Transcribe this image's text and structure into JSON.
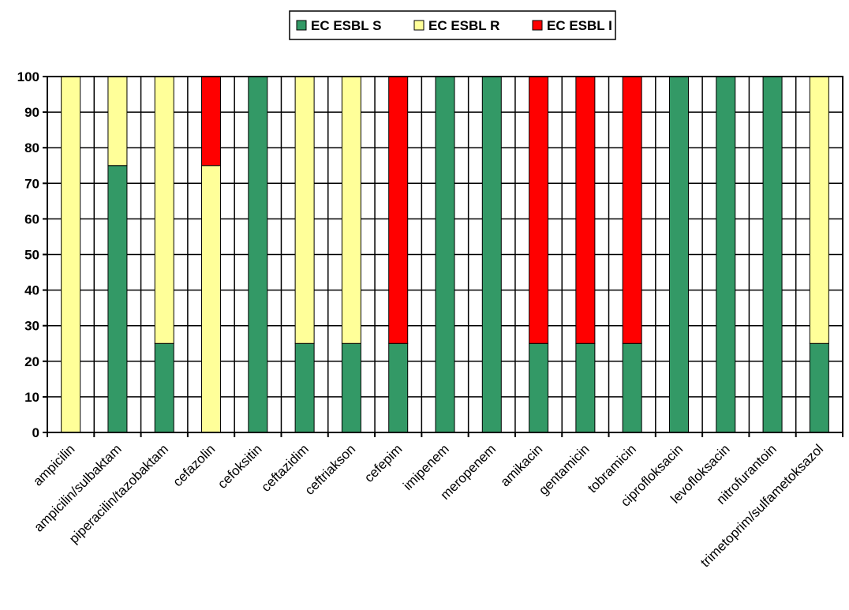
{
  "chart_data": {
    "type": "bar",
    "stacked": true,
    "categories": [
      "ampicilin",
      "ampicilin/sulbaktam",
      "piperacilin/tazobaktam",
      "cefazolin",
      "cefoksitin",
      "ceftazidim",
      "ceftriakson",
      "cefepim",
      "imipenem",
      "meropenem",
      "amikacin",
      "gentamicin",
      "tobramicin",
      "ciprofloksacin",
      "levofloksacin",
      "nitrofurantoin",
      "trimetoprim/sulfametoksazol"
    ],
    "series": [
      {
        "name": "EC ESBL S",
        "color": "#339966",
        "values": [
          0,
          75,
          25,
          0,
          100,
          25,
          25,
          25,
          100,
          100,
          25,
          25,
          25,
          100,
          100,
          100,
          25
        ]
      },
      {
        "name": "EC ESBL R",
        "color": "#FFFF99",
        "values": [
          100,
          25,
          75,
          75,
          0,
          75,
          75,
          0,
          0,
          0,
          0,
          0,
          0,
          0,
          0,
          0,
          75
        ]
      },
      {
        "name": "EC ESBL I",
        "color": "#FF0000",
        "values": [
          0,
          0,
          0,
          25,
          0,
          0,
          0,
          75,
          0,
          0,
          75,
          75,
          75,
          0,
          0,
          0,
          0
        ]
      }
    ],
    "ylim": [
      0,
      100
    ],
    "yticks": [
      0,
      10,
      20,
      30,
      40,
      50,
      60,
      70,
      80,
      90,
      100
    ],
    "grid": true,
    "legend": "top-center"
  }
}
